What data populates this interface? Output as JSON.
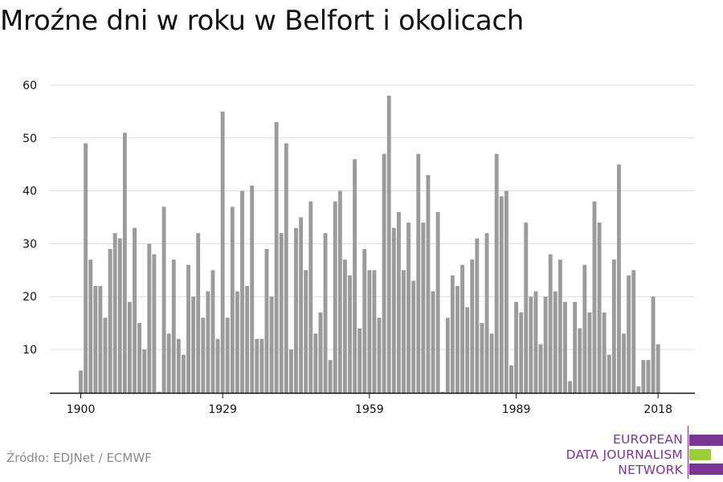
{
  "title": "Mroźne dni w roku w Belfort i okolicach",
  "source": "Źródło: EDJNet / ECMWF",
  "logo": {
    "lines": [
      "EUROPEAN",
      "DATA JOURNALISM",
      "NETWORK"
    ],
    "colors": [
      "#7d3593",
      "#9ccb3b",
      "#7d3593"
    ]
  },
  "chart_data": {
    "type": "bar",
    "title": "",
    "xlabel": "",
    "ylabel": "",
    "bar_color": "#9b9b9b",
    "grid": true,
    "x_start": 1900,
    "x_end": 2020,
    "ylim": [
      0,
      60
    ],
    "y_ticks": [
      10,
      20,
      30,
      40,
      50,
      60
    ],
    "x_ticks": [
      1900,
      1929,
      1959,
      1989,
      2018
    ],
    "categories": [
      1900,
      1901,
      1902,
      1903,
      1904,
      1905,
      1906,
      1907,
      1908,
      1909,
      1910,
      1911,
      1912,
      1913,
      1914,
      1915,
      1916,
      1917,
      1918,
      1919,
      1920,
      1921,
      1922,
      1923,
      1924,
      1925,
      1926,
      1927,
      1928,
      1929,
      1930,
      1931,
      1932,
      1933,
      1934,
      1935,
      1936,
      1937,
      1938,
      1939,
      1940,
      1941,
      1942,
      1943,
      1944,
      1945,
      1946,
      1947,
      1948,
      1949,
      1950,
      1951,
      1952,
      1953,
      1954,
      1955,
      1956,
      1957,
      1958,
      1959,
      1960,
      1961,
      1962,
      1963,
      1964,
      1965,
      1966,
      1967,
      1968,
      1969,
      1970,
      1971,
      1972,
      1973,
      1974,
      1975,
      1976,
      1977,
      1978,
      1979,
      1980,
      1981,
      1982,
      1983,
      1984,
      1985,
      1986,
      1987,
      1988,
      1989,
      1990,
      1991,
      1992,
      1993,
      1994,
      1995,
      1996,
      1997,
      1998,
      1999,
      2000,
      2001,
      2002,
      2003,
      2004,
      2005,
      2006,
      2007,
      2008,
      2009,
      2010,
      2011,
      2012,
      2013,
      2014,
      2015,
      2016,
      2017,
      2018,
      2019,
      2020
    ],
    "values": [
      6,
      49,
      27,
      22,
      22,
      16,
      29,
      32,
      31,
      51,
      19,
      33,
      15,
      10,
      30,
      28,
      2,
      37,
      13,
      27,
      12,
      9,
      26,
      20,
      32,
      16,
      21,
      25,
      12,
      55,
      16,
      37,
      21,
      40,
      22,
      41,
      12,
      12,
      29,
      20,
      53,
      32,
      49,
      10,
      33,
      35,
      25,
      38,
      13,
      17,
      32,
      8,
      38,
      40,
      27,
      24,
      46,
      14,
      29,
      25,
      25,
      16,
      47,
      58,
      33,
      36,
      25,
      34,
      23,
      47,
      34,
      43,
      21,
      36,
      2,
      16,
      24,
      22,
      26,
      18,
      27,
      31,
      15,
      32,
      13,
      47,
      39,
      40,
      7,
      19,
      17,
      34,
      20,
      21,
      11,
      20,
      28,
      21,
      27,
      19,
      4,
      19,
      14,
      26,
      17,
      38,
      34,
      17,
      9,
      27,
      45,
      13,
      24,
      25,
      3,
      8,
      8,
      20,
      11,
      0,
      0
    ]
  }
}
